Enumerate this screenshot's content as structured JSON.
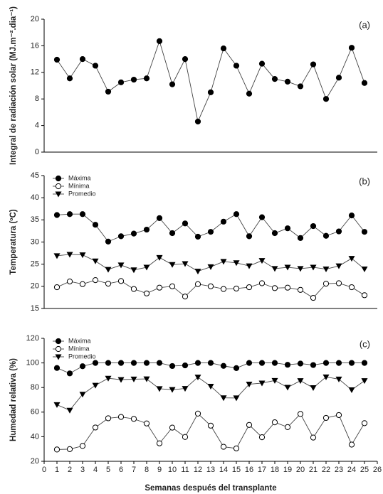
{
  "chart_data": [
    {
      "type": "line",
      "annotation": "(a)",
      "ylabel": "Integral de radiación solar (MJ.m⁻².dia⁻¹)",
      "x": [
        1,
        2,
        3,
        4,
        5,
        6,
        7,
        8,
        9,
        10,
        11,
        12,
        13,
        14,
        15,
        16,
        17,
        18,
        19,
        20,
        21,
        22,
        23,
        24,
        25
      ],
      "values": [
        13.9,
        11.1,
        14.0,
        13.0,
        9.1,
        10.5,
        10.9,
        11.1,
        16.7,
        10.2,
        14.0,
        4.6,
        9.0,
        15.6,
        13.0,
        8.8,
        13.3,
        11.0,
        10.6,
        9.9,
        13.2,
        8.0,
        11.2,
        15.7,
        10.4
      ],
      "marker": "circle",
      "color": "#000000",
      "xlim": [
        0,
        26
      ],
      "ylim": [
        0,
        20
      ],
      "yticks": [
        0,
        4,
        8,
        12,
        16,
        20
      ]
    },
    {
      "type": "line",
      "annotation": "(b)",
      "ylabel": "Temperatura (ºC)",
      "legend": "upper left",
      "x": [
        1,
        2,
        3,
        4,
        5,
        6,
        7,
        8,
        9,
        10,
        11,
        12,
        13,
        14,
        15,
        16,
        17,
        18,
        19,
        20,
        21,
        22,
        23,
        24,
        25
      ],
      "series": [
        {
          "name": "Máxima",
          "marker": "circle",
          "color": "#000000",
          "values": [
            36.1,
            36.3,
            36.3,
            33.9,
            30.1,
            31.3,
            31.9,
            32.8,
            35.4,
            32.0,
            34.2,
            31.2,
            32.3,
            34.6,
            36.3,
            31.3,
            35.6,
            32.0,
            33.1,
            30.9,
            33.6,
            31.4,
            32.4,
            36.0,
            32.3
          ]
        },
        {
          "name": "Mínima",
          "marker": "open-circle",
          "color": "#000000",
          "values": [
            19.8,
            21.1,
            20.5,
            21.4,
            20.6,
            21.2,
            19.4,
            18.4,
            19.7,
            20.0,
            17.7,
            20.5,
            20.0,
            19.4,
            19.5,
            19.8,
            20.7,
            19.6,
            19.7,
            19.2,
            17.4,
            20.6,
            20.7,
            19.8,
            18.0
          ]
        },
        {
          "name": "Promedio",
          "marker": "triangle-down",
          "color": "#000000",
          "values": [
            26.9,
            27.2,
            27.1,
            25.7,
            23.8,
            24.8,
            23.7,
            24.3,
            26.5,
            24.9,
            25.1,
            23.4,
            24.4,
            25.6,
            25.3,
            24.6,
            25.8,
            24.0,
            24.3,
            24.0,
            24.3,
            23.9,
            24.6,
            26.3,
            23.9
          ]
        }
      ],
      "xlim": [
        0,
        26
      ],
      "ylim": [
        15,
        45
      ],
      "yticks": [
        15,
        20,
        25,
        30,
        35,
        40,
        45
      ]
    },
    {
      "type": "line",
      "annotation": "(c)",
      "ylabel": "Humedad relativa (%)",
      "legend": "upper left",
      "xlabel": "Semanas después del transplante",
      "x": [
        1,
        2,
        3,
        4,
        5,
        6,
        7,
        8,
        9,
        10,
        11,
        12,
        13,
        14,
        15,
        16,
        17,
        18,
        19,
        20,
        21,
        22,
        23,
        24,
        25
      ],
      "series": [
        {
          "name": "Máxima",
          "marker": "circle",
          "color": "#000000",
          "values": [
            95.9,
            91.5,
            97.3,
            100,
            100,
            100,
            100,
            100,
            100,
            97.5,
            98,
            100,
            100,
            97.6,
            95.8,
            100,
            100,
            100,
            98.5,
            99.5,
            98.3,
            100,
            100,
            100,
            100
          ]
        },
        {
          "name": "Mínima",
          "marker": "open-circle",
          "color": "#000000",
          "values": [
            29.6,
            29.9,
            32.5,
            47.5,
            55.0,
            56.1,
            54.5,
            50.8,
            34.6,
            47.4,
            39.8,
            58.8,
            49.0,
            31.8,
            30.5,
            49.6,
            39.6,
            51.7,
            47.8,
            58.5,
            39.3,
            55.3,
            57.6,
            33.6,
            51.0
          ]
        },
        {
          "name": "Promedio",
          "marker": "triangle-down",
          "color": "#000000",
          "values": [
            66.0,
            61.5,
            74.5,
            81.8,
            87.5,
            86.4,
            86.8,
            87.0,
            79.0,
            78.3,
            79.2,
            88.4,
            81.0,
            71.6,
            71.5,
            82.7,
            83.6,
            85.7,
            80.1,
            85.5,
            79.8,
            88.6,
            86.8,
            78.1,
            85.5
          ]
        }
      ],
      "xlim": [
        0,
        26
      ],
      "xticks": [
        0,
        1,
        2,
        3,
        4,
        5,
        6,
        7,
        8,
        9,
        10,
        11,
        12,
        13,
        14,
        15,
        16,
        17,
        18,
        19,
        20,
        21,
        22,
        23,
        24,
        25,
        26
      ],
      "ylim": [
        20,
        120
      ],
      "yticks": [
        20,
        40,
        60,
        80,
        100,
        120
      ]
    }
  ]
}
